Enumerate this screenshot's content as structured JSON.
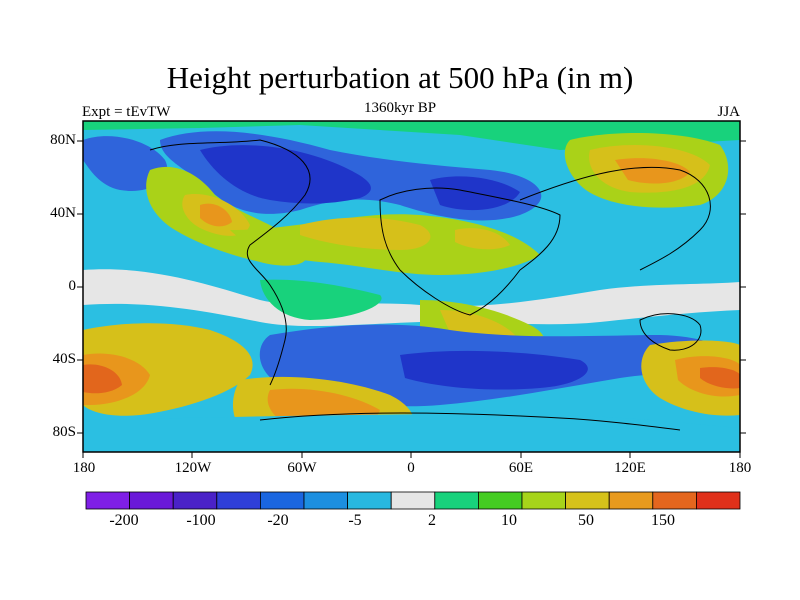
{
  "title": "Height perturbation at 500 hPa (in m)",
  "subtitle": "1360kyr BP",
  "left_label": "Expt = tEvTW",
  "right_label": "JJA",
  "lat_ticks": [
    "80N",
    "40N",
    "0",
    "40S",
    "80S"
  ],
  "lon_ticks": [
    "180",
    "120W",
    "60W",
    "0",
    "60E",
    "120E",
    "180"
  ],
  "colorbar": {
    "colors": [
      "#7f1fe6",
      "#6a19d8",
      "#4a22c8",
      "#2f3fd8",
      "#1a66e0",
      "#1c8fe0",
      "#28b8e0",
      "#e6e6e6",
      "#18d27c",
      "#44cc22",
      "#a6d41a",
      "#d6c21a",
      "#e89a1e",
      "#e4661e",
      "#e0301a"
    ],
    "labels": [
      "-200",
      "-100",
      "-20",
      "-5",
      "2",
      "10",
      "50",
      "150"
    ]
  },
  "field_colors": {
    "deep_neg": "#1f35c9",
    "neg": "#2f64db",
    "mid_neg": "#2a96e3",
    "light_neg": "#2bbfe2",
    "neutral": "#e6e6e6",
    "light_pos": "#1bd287",
    "pos": "#4bcc23",
    "mid_pos": "#aad218",
    "high_pos": "#d6c01a",
    "higher_pos": "#e8961c",
    "max_pos": "#e2661c"
  }
}
